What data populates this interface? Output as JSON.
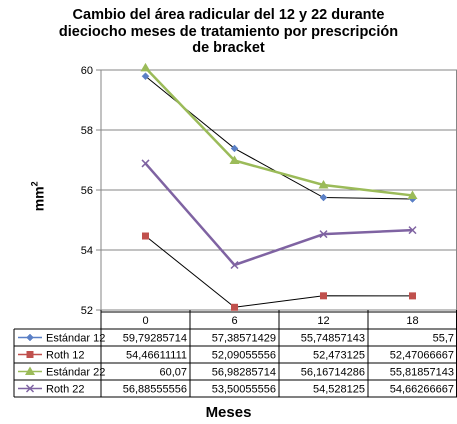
{
  "chart_data": {
    "type": "line",
    "title_lines": [
      "Cambio del área radicular del 12 y 22 durante",
      "dieciocho meses de tratamiento por prescripción",
      "de bracket"
    ],
    "xlabel": "Meses",
    "ylabel": "mm",
    "ylabel_sup": "2",
    "categories": [
      "0",
      "6",
      "12",
      "18"
    ],
    "ylim": [
      52,
      60
    ],
    "yticks": [
      "52",
      "54",
      "56",
      "58",
      "60"
    ],
    "grid": true,
    "legend_placement": "data-table",
    "series": [
      {
        "name": "Estándar 12",
        "values": [
          59.79285714,
          57.38571429,
          55.74857143,
          55.7
        ],
        "labels": [
          "59,79285714",
          "57,38571429",
          "55,74857143",
          "55,7"
        ],
        "color": "#5B80C6",
        "line_color": "#000000",
        "marker": "diamond"
      },
      {
        "name": "Roth 12",
        "values": [
          54.46611111,
          52.09055556,
          52.473125,
          52.47066667
        ],
        "labels": [
          "54,46611111",
          "52,09055556",
          "52,473125",
          "52,47066667"
        ],
        "color": "#C0504D",
        "line_color": "#000000",
        "marker": "square"
      },
      {
        "name": "Estándar 22",
        "values": [
          60.07,
          56.98285714,
          56.16714286,
          55.81857143
        ],
        "labels": [
          "60,07",
          "56,98285714",
          "56,16714286",
          "55,81857143"
        ],
        "color": "#9BBB59",
        "line_color": "#9BBB59",
        "marker": "triangle"
      },
      {
        "name": "Roth 22",
        "values": [
          56.88555556,
          53.50055556,
          54.528125,
          54.66266667
        ],
        "labels": [
          "56,88555556",
          "53,50055556",
          "54,528125",
          "54,66266667"
        ],
        "color": "#7F63A2",
        "line_color": "#7F63A2",
        "marker": "x"
      }
    ]
  }
}
